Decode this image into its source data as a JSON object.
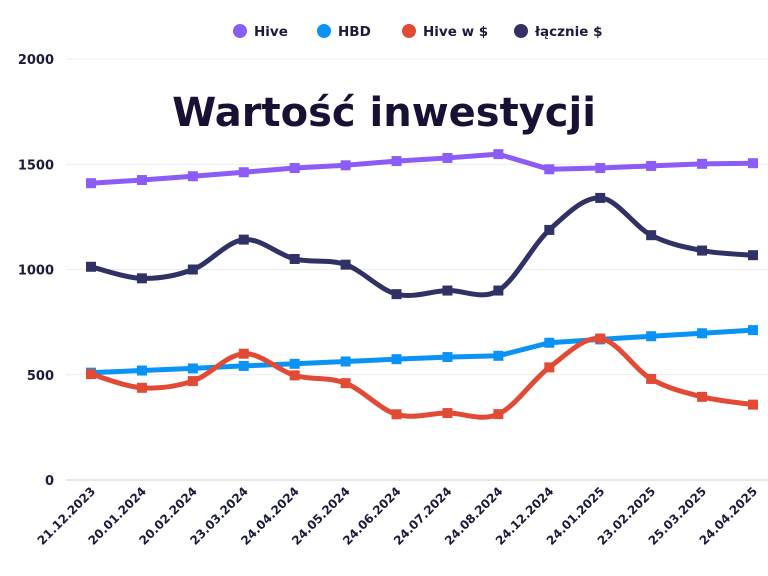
{
  "chart_data": {
    "type": "line",
    "title": "Wartość inwestycji",
    "categories": [
      "21.12.2023",
      "20.01.2024",
      "20.02.2024",
      "23.03.2024",
      "24.04.2024",
      "24.05.2024",
      "24.06.2024",
      "24.07.2024",
      "24.08.2024",
      "24.12.2024",
      "24.01.2025",
      "23.02.2025",
      "25.03.2025",
      "24.04.2025"
    ],
    "ylim": [
      0,
      2000
    ],
    "yticks": [
      0,
      500,
      1000,
      1500,
      2000
    ],
    "grid": true,
    "legend_position": "top",
    "series": [
      {
        "name": "Hive",
        "color": "#8b5cf6",
        "smooth": false,
        "values": [
          1410,
          1425,
          1443,
          1462,
          1482,
          1495,
          1515,
          1530,
          1548,
          1476,
          1482,
          1492,
          1502,
          1505
        ]
      },
      {
        "name": "HBD",
        "color": "#0a93f5",
        "smooth": false,
        "values": [
          510,
          520,
          530,
          542,
          552,
          563,
          574,
          584,
          590,
          652,
          668,
          683,
          697,
          712
        ]
      },
      {
        "name": "Hive w $",
        "color": "#e14b35",
        "smooth": true,
        "values": [
          503,
          438,
          470,
          600,
          497,
          460,
          312,
          318,
          313,
          535,
          672,
          480,
          395,
          358
        ]
      },
      {
        "name": "łącznie $",
        "color": "#303266",
        "smooth": true,
        "values": [
          1013,
          958,
          1000,
          1142,
          1050,
          1023,
          883,
          900,
          900,
          1188,
          1340,
          1163,
          1090,
          1068
        ]
      }
    ]
  }
}
